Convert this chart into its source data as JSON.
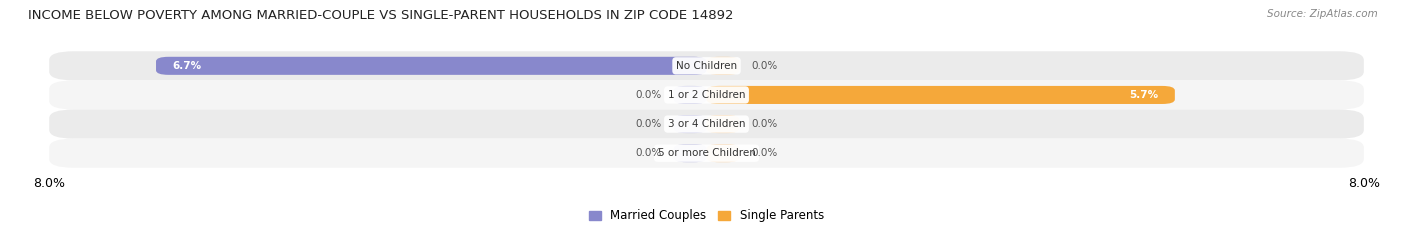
{
  "title": "INCOME BELOW POVERTY AMONG MARRIED-COUPLE VS SINGLE-PARENT HOUSEHOLDS IN ZIP CODE 14892",
  "source": "Source: ZipAtlas.com",
  "categories": [
    "No Children",
    "1 or 2 Children",
    "3 or 4 Children",
    "5 or more Children"
  ],
  "married_values": [
    6.7,
    0.0,
    0.0,
    0.0
  ],
  "single_values": [
    0.0,
    5.7,
    0.0,
    0.0
  ],
  "married_color": "#8888cc",
  "single_color": "#f5a83a",
  "single_zero_color": "#f5cfa0",
  "married_zero_color": "#b8b8dd",
  "row_bg_even": "#ebebeb",
  "row_bg_odd": "#f5f5f5",
  "x_max": 8.0,
  "x_tick_left": "8.0%",
  "x_tick_right": "8.0%",
  "title_fontsize": 9.5,
  "source_fontsize": 7.5,
  "label_fontsize": 7.5,
  "tick_fontsize": 9,
  "bar_height": 0.62,
  "fig_width": 14.06,
  "fig_height": 2.33,
  "zero_stub_size": 0.4
}
